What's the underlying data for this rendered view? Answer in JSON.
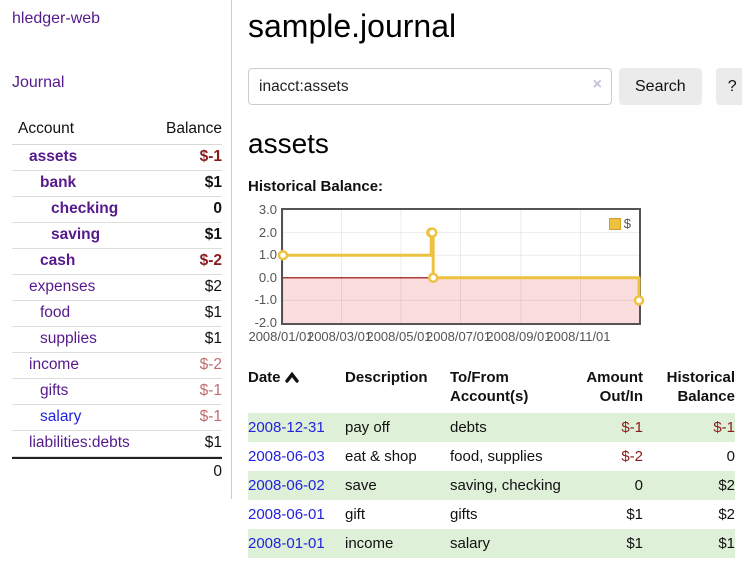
{
  "app": {
    "brand": "hledger-web",
    "nav_journal": "Journal"
  },
  "sidebar": {
    "table": {
      "headers": [
        "Account",
        "Balance"
      ],
      "rows": [
        {
          "account": "assets",
          "balance": "$-1",
          "level": 1,
          "bold": true,
          "neg": "strong"
        },
        {
          "account": "bank",
          "balance": "$1",
          "level": 2,
          "bold": true
        },
        {
          "account": "checking",
          "balance": "0",
          "level": 3,
          "bold": true
        },
        {
          "account": "saving",
          "balance": "$1",
          "level": 3,
          "bold": true
        },
        {
          "account": "cash",
          "balance": "$-2",
          "level": 2,
          "bold": true,
          "neg": "strong"
        },
        {
          "account": "expenses",
          "balance": "$2",
          "level": 1
        },
        {
          "account": "food",
          "balance": "$1",
          "level": 2
        },
        {
          "account": "supplies",
          "balance": "$1",
          "level": 2
        },
        {
          "account": "income",
          "balance": "$-2",
          "level": 1,
          "neg": "soft"
        },
        {
          "account": "gifts",
          "balance": "$-1",
          "level": 2,
          "neg": "soft"
        },
        {
          "account": "salary",
          "balance": "$-1",
          "level": 2,
          "neg": "soft",
          "link_state": "unvisited"
        },
        {
          "account": "liabilities:debts",
          "balance": "$1",
          "level": 1
        }
      ],
      "total": "0"
    }
  },
  "header": {
    "title": "sample.journal"
  },
  "search": {
    "value": "inacct:assets",
    "clear_icon": "×",
    "search_label": "Search",
    "help_label": "?"
  },
  "account_view": {
    "title": "assets",
    "section_label": "Historical Balance:"
  },
  "chart_data": {
    "type": "line",
    "step": true,
    "title": "Historical Balance",
    "x_range": [
      "2008-01-01",
      "2008-12-31"
    ],
    "ylim": [
      -2,
      3
    ],
    "ytick_labels": [
      "3.0",
      "2.0",
      "1.0",
      "0.0",
      "-1.0",
      "-2.0"
    ],
    "xticks": [
      "2008/01/01",
      "2008/03/01",
      "2008/05/01",
      "2008/07/01",
      "2008/09/01",
      "2008/11/01"
    ],
    "grid": true,
    "legend_position": "top-right",
    "series": [
      {
        "name": "$",
        "color": "#edc240",
        "points": [
          [
            "2008-01-01",
            1
          ],
          [
            "2008-06-01",
            2
          ],
          [
            "2008-06-02",
            2
          ],
          [
            "2008-06-03",
            0
          ],
          [
            "2008-12-31",
            -1
          ]
        ]
      }
    ],
    "below_zero_fill": "#fbdddd",
    "zero_line_color": "#8b0000"
  },
  "register": {
    "columns": [
      {
        "line1": "Date",
        "line2": "",
        "align": "left",
        "sortable": true
      },
      {
        "line1": "Description",
        "line2": "",
        "align": "left"
      },
      {
        "line1": "To/From",
        "line2": "Account(s)",
        "align": "left"
      },
      {
        "line1": "Amount",
        "line2": "Out/In",
        "align": "right"
      },
      {
        "line1": "Historical",
        "line2": "Balance",
        "align": "right"
      }
    ],
    "sort_icon": "chevron-up",
    "rows": [
      {
        "date": "2008-12-31",
        "description": "pay off",
        "accounts": "debts",
        "amount": "$-1",
        "balance": "$-1"
      },
      {
        "date": "2008-06-03",
        "description": "eat & shop",
        "accounts": "food, supplies",
        "amount": "$-2",
        "balance": "0"
      },
      {
        "date": "2008-06-02",
        "description": "save",
        "accounts": "saving, checking",
        "amount": "0",
        "balance": "$2"
      },
      {
        "date": "2008-06-01",
        "description": "gift",
        "accounts": "gifts",
        "amount": "$1",
        "balance": "$2"
      },
      {
        "date": "2008-01-01",
        "description": "income",
        "accounts": "salary",
        "amount": "$1",
        "balance": "$1"
      }
    ]
  },
  "colors": {
    "link_purple": "#551a8b",
    "link_blue": "#2222dd",
    "negative_strong": "#8b1a1a",
    "negative_soft": "#bf6d6d",
    "row_highlight_green": "#dff0d8",
    "chart_line_gold": "#edc240",
    "chart_below_zero_pink": "#fbdddd",
    "chart_zero_line_red": "#8b0000",
    "button_gray": "#ebebeb"
  }
}
